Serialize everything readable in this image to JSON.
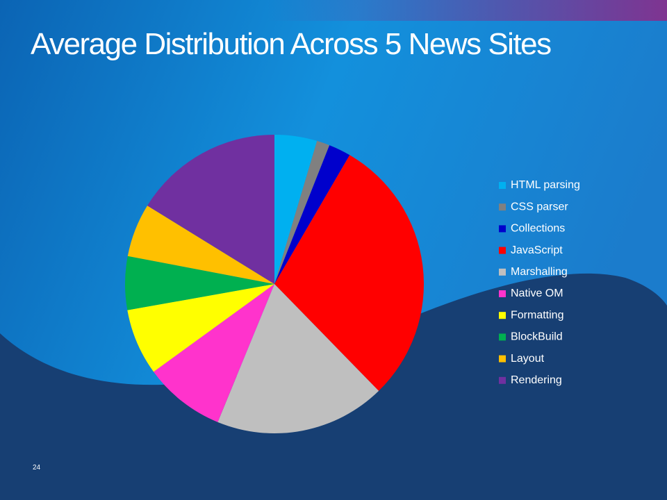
{
  "chart_data": {
    "type": "pie",
    "title": "Average Distribution Across 5 News Sites",
    "categories": [
      "HTML parsing",
      "CSS parser",
      "Collections",
      "JavaScript",
      "Marshalling",
      "Native OM",
      "Formatting",
      "BlockBuild",
      "Layout",
      "Rendering"
    ],
    "values": [
      4.6,
      1.4,
      2.4,
      29.3,
      18.5,
      8.8,
      7.2,
      5.8,
      5.8,
      16.2
    ],
    "colors": [
      "#00b0f0",
      "#808080",
      "#0000cc",
      "#ff0000",
      "#bfbfbf",
      "#ff33cc",
      "#ffff00",
      "#00b050",
      "#ffc000",
      "#7030a0"
    ],
    "legend": "right"
  },
  "slide_number": "24"
}
